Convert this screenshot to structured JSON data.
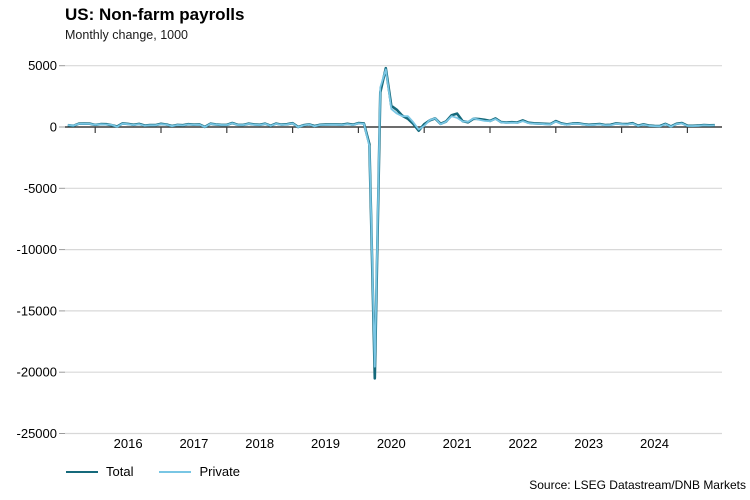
{
  "header": {
    "title": "US: Non-farm payrolls",
    "subtitle": "Monthly change, 1000"
  },
  "source_label": "Source: LSEG Datastream/DNB Markets",
  "legend": {
    "items": [
      {
        "label": "Total",
        "color": "#15697b"
      },
      {
        "label": "Private",
        "color": "#79c6e4"
      }
    ]
  },
  "colors": {
    "gridline": "#d8d8d8",
    "zero_line": "#3c3c3c",
    "x_tick": "#3c3c3c",
    "y_tick": "#9b9b9b",
    "text": "#000000"
  },
  "chart_data": {
    "type": "line",
    "title": "US: Non-farm payrolls",
    "subtitle": "Monthly change, 1000",
    "xlabel": "",
    "ylabel": "Monthly change, 1000",
    "ylim": [
      -25000,
      5000
    ],
    "yticks": [
      5000,
      0,
      -5000,
      -10000,
      -15000,
      -20000,
      -25000
    ],
    "year_labels": [
      "2016",
      "2017",
      "2018",
      "2019",
      "2020",
      "2021",
      "2022",
      "2023",
      "2024"
    ],
    "x_monthly_start": "2015-08",
    "x_monthly_end": "2025-06",
    "grid": "horizontal-only",
    "legend_position": "bottom-left",
    "series": [
      {
        "name": "Total",
        "color": "#15697b",
        "values": [
          150,
          100,
          270,
          280,
          270,
          170,
          240,
          225,
          150,
          40,
          290,
          250,
          180,
          250,
          125,
          160,
          155,
          260,
          200,
          80,
          175,
          145,
          230,
          190,
          210,
          10,
          270,
          215,
          175,
          175,
          330,
          180,
          175,
          270,
          210,
          180,
          270,
          110,
          275,
          195,
          230,
          310,
          0,
          150,
          215,
          80,
          180,
          195,
          210,
          210,
          185,
          260,
          185,
          315,
          290,
          -1400,
          -20500,
          2830,
          4800,
          1730,
          1400,
          920,
          680,
          265,
          -300,
          230,
          540,
          700,
          260,
          450,
          960,
          1090,
          480,
          380,
          680,
          650,
          590,
          500,
          700,
          400,
          370,
          390,
          370,
          540,
          350,
          300,
          280,
          260,
          240,
          480,
          290,
          215,
          280,
          300,
          240,
          180,
          210,
          245,
          165,
          180,
          290,
          255,
          235,
          310,
          110,
          215,
          120,
          90,
          80,
          255,
          45,
          260,
          325,
          110,
          100,
          120,
          155,
          140,
          150
        ]
      },
      {
        "name": "Private",
        "color": "#79c6e4",
        "values": [
          160,
          115,
          250,
          260,
          250,
          180,
          220,
          200,
          170,
          20,
          270,
          230,
          160,
          230,
          105,
          140,
          135,
          240,
          190,
          70,
          160,
          130,
          210,
          170,
          190,
          0,
          250,
          200,
          160,
          160,
          310,
          165,
          160,
          250,
          190,
          165,
          250,
          95,
          255,
          180,
          210,
          290,
          -10,
          130,
          200,
          60,
          160,
          175,
          190,
          190,
          165,
          240,
          165,
          290,
          260,
          -1550,
          -19550,
          3230,
          4700,
          1480,
          1100,
          880,
          890,
          400,
          -200,
          90,
          560,
          710,
          230,
          430,
          880,
          740,
          460,
          420,
          700,
          590,
          500,
          470,
          650,
          380,
          340,
          360,
          340,
          480,
          320,
          280,
          250,
          230,
          220,
          440,
          260,
          190,
          250,
          270,
          210,
          150,
          180,
          215,
          140,
          150,
          260,
          230,
          200,
          280,
          90,
          190,
          100,
          70,
          60,
          230,
          25,
          235,
          290,
          90,
          80,
          100,
          135,
          120,
          130
        ]
      }
    ]
  }
}
